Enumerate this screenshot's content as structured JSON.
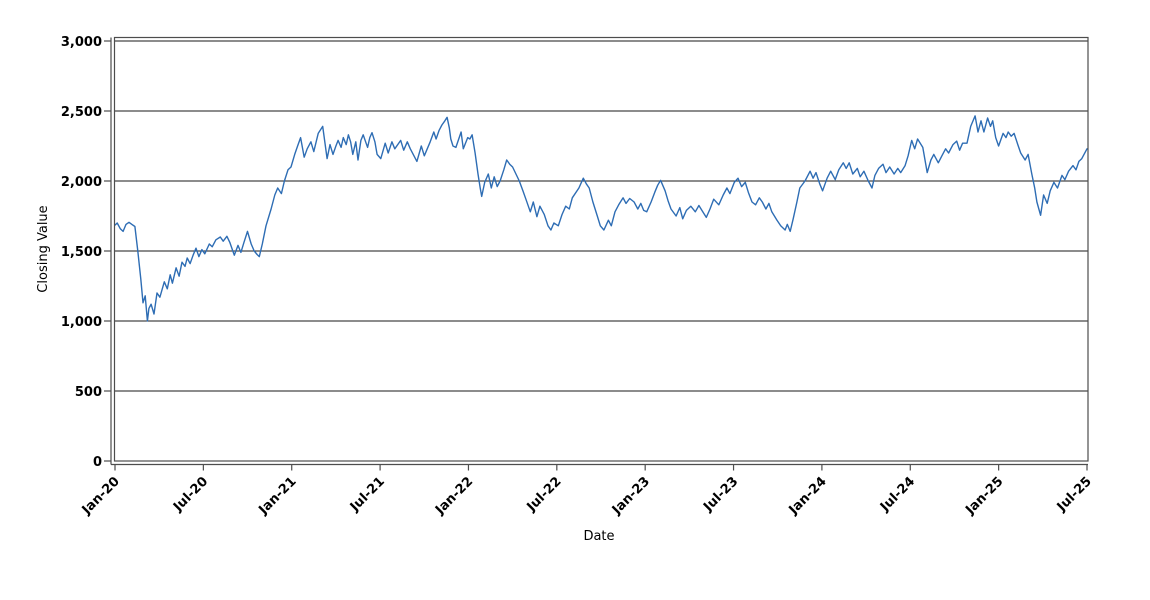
{
  "figure": {
    "x_axis_title": "Date",
    "y_axis_title": "Closing Value"
  },
  "style": {
    "background": "#ffffff",
    "line_color": "#2e6db4",
    "grid_color": "#1a1a1a",
    "axis_color": "#4d4d4d",
    "text_color": "#000000"
  },
  "chart_data": {
    "type": "line",
    "title": "",
    "xlabel": "Date",
    "ylabel": "Closing Value",
    "grid": "horizontal",
    "legend": "none",
    "x_unit": "months since Jan-2020",
    "xlim": [
      0,
      66
    ],
    "ylim": [
      0,
      3000
    ],
    "x_ticks": [
      {
        "t": 0,
        "label": "Jan-20"
      },
      {
        "t": 6,
        "label": "Jul-20"
      },
      {
        "t": 12,
        "label": "Jan-21"
      },
      {
        "t": 18,
        "label": "Jul-21"
      },
      {
        "t": 24,
        "label": "Jan-22"
      },
      {
        "t": 30,
        "label": "Jul-22"
      },
      {
        "t": 36,
        "label": "Jan-23"
      },
      {
        "t": 42,
        "label": "Jul-23"
      },
      {
        "t": 48,
        "label": "Jan-24"
      },
      {
        "t": 54,
        "label": "Jul-24"
      },
      {
        "t": 60,
        "label": "Jan-25"
      },
      {
        "t": 66,
        "label": "Jul-25"
      }
    ],
    "y_ticks": [
      {
        "v": 0,
        "label": "0"
      },
      {
        "v": 500,
        "label": "500"
      },
      {
        "v": 1000,
        "label": "1,000"
      },
      {
        "v": 1500,
        "label": "1,500"
      },
      {
        "v": 2000,
        "label": "2,000"
      },
      {
        "v": 2500,
        "label": "2,500"
      },
      {
        "v": 3000,
        "label": "3,000"
      }
    ],
    "series": [
      {
        "name": "Closing Value",
        "color": "#2e6db4",
        "points": [
          [
            0.0,
            1685
          ],
          [
            0.15,
            1700
          ],
          [
            0.35,
            1660
          ],
          [
            0.55,
            1640
          ],
          [
            0.75,
            1690
          ],
          [
            0.95,
            1705
          ],
          [
            1.15,
            1690
          ],
          [
            1.35,
            1675
          ],
          [
            1.55,
            1500
          ],
          [
            1.75,
            1300
          ],
          [
            1.9,
            1130
          ],
          [
            2.05,
            1180
          ],
          [
            2.2,
            1000
          ],
          [
            2.3,
            1090
          ],
          [
            2.45,
            1120
          ],
          [
            2.65,
            1050
          ],
          [
            2.85,
            1200
          ],
          [
            3.05,
            1170
          ],
          [
            3.35,
            1280
          ],
          [
            3.55,
            1230
          ],
          [
            3.75,
            1330
          ],
          [
            3.9,
            1270
          ],
          [
            4.15,
            1380
          ],
          [
            4.35,
            1320
          ],
          [
            4.55,
            1420
          ],
          [
            4.75,
            1390
          ],
          [
            4.9,
            1450
          ],
          [
            5.1,
            1410
          ],
          [
            5.3,
            1470
          ],
          [
            5.5,
            1520
          ],
          [
            5.7,
            1460
          ],
          [
            5.9,
            1510
          ],
          [
            6.1,
            1480
          ],
          [
            6.4,
            1550
          ],
          [
            6.6,
            1530
          ],
          [
            6.85,
            1580
          ],
          [
            7.15,
            1600
          ],
          [
            7.35,
            1570
          ],
          [
            7.6,
            1605
          ],
          [
            7.8,
            1560
          ],
          [
            8.1,
            1470
          ],
          [
            8.35,
            1540
          ],
          [
            8.55,
            1490
          ],
          [
            8.75,
            1560
          ],
          [
            9.0,
            1640
          ],
          [
            9.25,
            1550
          ],
          [
            9.45,
            1500
          ],
          [
            9.65,
            1475
          ],
          [
            9.8,
            1460
          ],
          [
            10.0,
            1550
          ],
          [
            10.25,
            1680
          ],
          [
            10.6,
            1800
          ],
          [
            10.85,
            1900
          ],
          [
            11.05,
            1950
          ],
          [
            11.3,
            1910
          ],
          [
            11.5,
            2000
          ],
          [
            11.75,
            2080
          ],
          [
            11.95,
            2100
          ],
          [
            12.2,
            2190
          ],
          [
            12.4,
            2250
          ],
          [
            12.6,
            2310
          ],
          [
            12.85,
            2170
          ],
          [
            13.05,
            2230
          ],
          [
            13.3,
            2280
          ],
          [
            13.5,
            2210
          ],
          [
            13.8,
            2340
          ],
          [
            14.1,
            2390
          ],
          [
            14.4,
            2160
          ],
          [
            14.6,
            2260
          ],
          [
            14.8,
            2190
          ],
          [
            15.0,
            2250
          ],
          [
            15.15,
            2290
          ],
          [
            15.35,
            2240
          ],
          [
            15.5,
            2310
          ],
          [
            15.7,
            2260
          ],
          [
            15.85,
            2330
          ],
          [
            16.0,
            2280
          ],
          [
            16.15,
            2190
          ],
          [
            16.35,
            2280
          ],
          [
            16.5,
            2150
          ],
          [
            16.7,
            2290
          ],
          [
            16.85,
            2330
          ],
          [
            17.05,
            2270
          ],
          [
            17.15,
            2240
          ],
          [
            17.3,
            2310
          ],
          [
            17.45,
            2345
          ],
          [
            17.65,
            2280
          ],
          [
            17.8,
            2190
          ],
          [
            18.05,
            2160
          ],
          [
            18.35,
            2270
          ],
          [
            18.55,
            2200
          ],
          [
            18.8,
            2280
          ],
          [
            19.0,
            2230
          ],
          [
            19.4,
            2290
          ],
          [
            19.6,
            2220
          ],
          [
            19.85,
            2280
          ],
          [
            20.05,
            2230
          ],
          [
            20.5,
            2140
          ],
          [
            20.8,
            2250
          ],
          [
            21.0,
            2180
          ],
          [
            21.4,
            2280
          ],
          [
            21.65,
            2350
          ],
          [
            21.8,
            2300
          ],
          [
            22.0,
            2360
          ],
          [
            22.2,
            2400
          ],
          [
            22.4,
            2430
          ],
          [
            22.55,
            2455
          ],
          [
            22.7,
            2380
          ],
          [
            22.8,
            2300
          ],
          [
            22.95,
            2250
          ],
          [
            23.15,
            2240
          ],
          [
            23.5,
            2350
          ],
          [
            23.65,
            2230
          ],
          [
            23.95,
            2310
          ],
          [
            24.1,
            2300
          ],
          [
            24.25,
            2330
          ],
          [
            24.45,
            2200
          ],
          [
            24.65,
            2050
          ],
          [
            24.8,
            1950
          ],
          [
            24.9,
            1890
          ],
          [
            25.1,
            1990
          ],
          [
            25.35,
            2050
          ],
          [
            25.55,
            1950
          ],
          [
            25.75,
            2030
          ],
          [
            25.95,
            1960
          ],
          [
            26.15,
            2000
          ],
          [
            26.4,
            2080
          ],
          [
            26.6,
            2150
          ],
          [
            26.8,
            2120
          ],
          [
            27.0,
            2100
          ],
          [
            27.45,
            2000
          ],
          [
            27.7,
            1930
          ],
          [
            27.9,
            1870
          ],
          [
            28.2,
            1780
          ],
          [
            28.4,
            1850
          ],
          [
            28.65,
            1745
          ],
          [
            28.85,
            1820
          ],
          [
            29.15,
            1760
          ],
          [
            29.4,
            1680
          ],
          [
            29.6,
            1650
          ],
          [
            29.8,
            1700
          ],
          [
            30.1,
            1680
          ],
          [
            30.35,
            1760
          ],
          [
            30.6,
            1820
          ],
          [
            30.85,
            1800
          ],
          [
            31.05,
            1880
          ],
          [
            31.5,
            1950
          ],
          [
            31.8,
            2020
          ],
          [
            32.0,
            1980
          ],
          [
            32.2,
            1950
          ],
          [
            32.45,
            1850
          ],
          [
            32.75,
            1750
          ],
          [
            32.95,
            1680
          ],
          [
            33.2,
            1650
          ],
          [
            33.5,
            1720
          ],
          [
            33.7,
            1680
          ],
          [
            33.95,
            1780
          ],
          [
            34.2,
            1830
          ],
          [
            34.5,
            1880
          ],
          [
            34.7,
            1840
          ],
          [
            34.95,
            1875
          ],
          [
            35.25,
            1850
          ],
          [
            35.5,
            1800
          ],
          [
            35.7,
            1840
          ],
          [
            35.9,
            1790
          ],
          [
            36.1,
            1780
          ],
          [
            36.4,
            1850
          ],
          [
            36.65,
            1920
          ],
          [
            36.85,
            1970
          ],
          [
            37.05,
            2005
          ],
          [
            37.35,
            1930
          ],
          [
            37.55,
            1860
          ],
          [
            37.75,
            1800
          ],
          [
            38.1,
            1750
          ],
          [
            38.35,
            1810
          ],
          [
            38.55,
            1730
          ],
          [
            38.8,
            1790
          ],
          [
            39.1,
            1820
          ],
          [
            39.4,
            1780
          ],
          [
            39.65,
            1825
          ],
          [
            39.85,
            1790
          ],
          [
            40.15,
            1740
          ],
          [
            40.4,
            1800
          ],
          [
            40.65,
            1870
          ],
          [
            41.0,
            1830
          ],
          [
            41.3,
            1900
          ],
          [
            41.55,
            1950
          ],
          [
            41.75,
            1910
          ],
          [
            42.05,
            1990
          ],
          [
            42.3,
            2020
          ],
          [
            42.55,
            1960
          ],
          [
            42.8,
            1990
          ],
          [
            43.0,
            1920
          ],
          [
            43.25,
            1850
          ],
          [
            43.5,
            1830
          ],
          [
            43.75,
            1880
          ],
          [
            43.95,
            1850
          ],
          [
            44.2,
            1800
          ],
          [
            44.4,
            1840
          ],
          [
            44.6,
            1780
          ],
          [
            44.95,
            1720
          ],
          [
            45.2,
            1680
          ],
          [
            45.5,
            1650
          ],
          [
            45.65,
            1690
          ],
          [
            45.85,
            1640
          ],
          [
            46.05,
            1730
          ],
          [
            46.3,
            1850
          ],
          [
            46.5,
            1950
          ],
          [
            46.85,
            2000
          ],
          [
            47.2,
            2070
          ],
          [
            47.4,
            2020
          ],
          [
            47.6,
            2060
          ],
          [
            47.85,
            1980
          ],
          [
            48.05,
            1930
          ],
          [
            48.35,
            2020
          ],
          [
            48.6,
            2070
          ],
          [
            48.9,
            2010
          ],
          [
            49.15,
            2080
          ],
          [
            49.45,
            2130
          ],
          [
            49.65,
            2090
          ],
          [
            49.85,
            2130
          ],
          [
            50.1,
            2050
          ],
          [
            50.4,
            2090
          ],
          [
            50.6,
            2030
          ],
          [
            50.85,
            2070
          ],
          [
            51.15,
            2000
          ],
          [
            51.4,
            1950
          ],
          [
            51.6,
            2040
          ],
          [
            51.85,
            2090
          ],
          [
            52.15,
            2120
          ],
          [
            52.35,
            2060
          ],
          [
            52.6,
            2100
          ],
          [
            52.9,
            2050
          ],
          [
            53.15,
            2090
          ],
          [
            53.35,
            2060
          ],
          [
            53.65,
            2110
          ],
          [
            53.85,
            2180
          ],
          [
            54.1,
            2290
          ],
          [
            54.3,
            2230
          ],
          [
            54.5,
            2300
          ],
          [
            54.85,
            2240
          ],
          [
            55.15,
            2060
          ],
          [
            55.4,
            2150
          ],
          [
            55.6,
            2190
          ],
          [
            55.9,
            2130
          ],
          [
            56.15,
            2180
          ],
          [
            56.4,
            2230
          ],
          [
            56.6,
            2200
          ],
          [
            56.9,
            2260
          ],
          [
            57.15,
            2285
          ],
          [
            57.35,
            2220
          ],
          [
            57.55,
            2270
          ],
          [
            57.85,
            2270
          ],
          [
            58.1,
            2390
          ],
          [
            58.4,
            2465
          ],
          [
            58.6,
            2350
          ],
          [
            58.8,
            2430
          ],
          [
            59.0,
            2350
          ],
          [
            59.25,
            2450
          ],
          [
            59.45,
            2390
          ],
          [
            59.6,
            2430
          ],
          [
            59.8,
            2310
          ],
          [
            60.0,
            2250
          ],
          [
            60.3,
            2340
          ],
          [
            60.5,
            2310
          ],
          [
            60.65,
            2350
          ],
          [
            60.85,
            2320
          ],
          [
            61.05,
            2340
          ],
          [
            61.3,
            2260
          ],
          [
            61.5,
            2200
          ],
          [
            61.8,
            2150
          ],
          [
            62.0,
            2190
          ],
          [
            62.25,
            2050
          ],
          [
            62.45,
            1950
          ],
          [
            62.6,
            1850
          ],
          [
            62.85,
            1755
          ],
          [
            63.05,
            1900
          ],
          [
            63.3,
            1840
          ],
          [
            63.5,
            1930
          ],
          [
            63.75,
            1990
          ],
          [
            64.0,
            1950
          ],
          [
            64.3,
            2040
          ],
          [
            64.5,
            2010
          ],
          [
            64.75,
            2070
          ],
          [
            65.05,
            2110
          ],
          [
            65.25,
            2080
          ],
          [
            65.45,
            2140
          ],
          [
            65.65,
            2160
          ],
          [
            66.0,
            2230
          ]
        ]
      }
    ]
  }
}
